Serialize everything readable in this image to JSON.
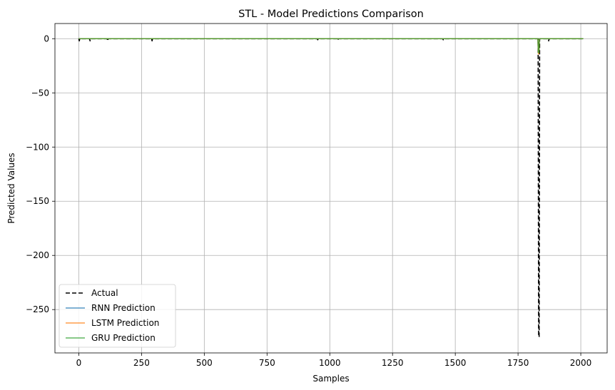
{
  "chart_data": {
    "type": "line",
    "title": "STL - Model Predictions Comparison",
    "xlabel": "Samples",
    "ylabel": "Predicted Values",
    "xlim": [
      -95,
      2105
    ],
    "ylim": [
      -290,
      14
    ],
    "xticks": [
      0,
      250,
      500,
      750,
      1000,
      1250,
      1500,
      1750,
      2000
    ],
    "yticks": [
      0,
      -50,
      -100,
      -150,
      -200,
      -250
    ],
    "x_tick_labels": [
      "0",
      "250",
      "500",
      "750",
      "1000",
      "1250",
      "1500",
      "1750",
      "2000"
    ],
    "y_tick_labels": [
      "0",
      "−50",
      "−100",
      "−150",
      "−200",
      "−250"
    ],
    "grid": true,
    "legend_position": "lower-left",
    "series": [
      {
        "name": "Actual",
        "color": "#000000",
        "style": "dashed",
        "points": [
          [
            0,
            0
          ],
          [
            2,
            -2
          ],
          [
            4,
            0
          ],
          [
            43,
            0
          ],
          [
            45,
            -2
          ],
          [
            47,
            0
          ],
          [
            113,
            0
          ],
          [
            115,
            -2
          ],
          [
            117,
            0
          ],
          [
            290,
            0
          ],
          [
            292,
            -2
          ],
          [
            294,
            0
          ],
          [
            950,
            0
          ],
          [
            952,
            -1
          ],
          [
            954,
            0
          ],
          [
            1030,
            0
          ],
          [
            1032,
            -1.5
          ],
          [
            1034,
            0
          ],
          [
            1450,
            0
          ],
          [
            1452,
            -1
          ],
          [
            1454,
            0
          ],
          [
            1830,
            0
          ],
          [
            1832,
            -275
          ],
          [
            1834,
            -275
          ],
          [
            1836,
            0
          ],
          [
            1870,
            0
          ],
          [
            1872,
            -2
          ],
          [
            1874,
            0
          ],
          [
            2010,
            0
          ]
        ]
      },
      {
        "name": "RNN Prediction",
        "color": "#1f77b4",
        "style": "solid",
        "points": [
          [
            0,
            0
          ],
          [
            1829,
            0
          ],
          [
            1831,
            -12
          ],
          [
            1833,
            -12
          ],
          [
            1835,
            0
          ],
          [
            2010,
            0
          ]
        ]
      },
      {
        "name": "LSTM Prediction",
        "color": "#ff7f0e",
        "style": "solid",
        "points": [
          [
            0,
            0
          ],
          [
            1829,
            0
          ],
          [
            1831,
            -14
          ],
          [
            1833,
            -14
          ],
          [
            1835,
            0
          ],
          [
            2010,
            0
          ]
        ]
      },
      {
        "name": "GRU Prediction",
        "color": "#2ca02c",
        "style": "solid",
        "points": [
          [
            0,
            0
          ],
          [
            1829,
            0
          ],
          [
            1831,
            -13
          ],
          [
            1833,
            -13
          ],
          [
            1835,
            0
          ],
          [
            2010,
            0
          ]
        ]
      }
    ]
  }
}
